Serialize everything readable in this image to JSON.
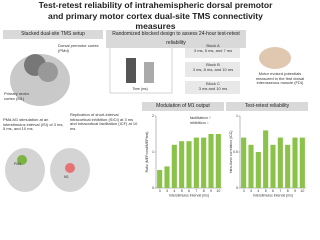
{
  "header": {
    "title": "Test-retest reliability of intrahemispheric dorsal premotor and primary motor cortex dual-site TMS connectivity measures"
  },
  "setup": {
    "heading": "Stacked dual-site TMS setup",
    "pmd_label": "Dorsal premotor cortex (PMd)",
    "m1_label": "Primary motor cortex (M1)",
    "stim_text": "PMd-M1 stimulation at an interstimulus interval (ISI) of 3 ms, 5 ms, and 10 ms",
    "replication_text": "Replication of short-interval intracortical inhibition (SICI) at 3 ms and intracortical facilitation (ICF) at 10 ms",
    "pmd_tag": "PMd",
    "m1_tag": "M1"
  },
  "design": {
    "heading": "Randomized blocked design to assess 24-hour test-retest reliability",
    "time_label": "Time (ms)",
    "blocks": [
      "Block A\n3 ms, 5 ms, and 7 ms",
      "Block B\n3 ms, 8 ms, and 10 ms",
      "Block C\n3 ms and 10 ms"
    ],
    "mep_text": "Motor evoked potentials measured in the first dorsal interosseous muscle (FDI)"
  },
  "modulation": {
    "heading": "Modulation of M1 output",
    "ylabel": "Ratio (MEPcond/MEPtest)",
    "xlabel": "Interstimulus interval (ms)",
    "note": "facilitation ↑ inhibition ↓",
    "categories": [
      "3",
      "3",
      "4",
      "5",
      "6",
      "7",
      "8",
      "9",
      "10"
    ],
    "values": [
      0.5,
      0.6,
      1.2,
      1.3,
      1.3,
      1.4,
      1.4,
      1.5,
      1.5
    ],
    "color": "#8bc34a",
    "ylim": [
      0,
      2
    ],
    "yticks": [
      0,
      1,
      2
    ]
  },
  "reliability": {
    "heading": "Test-retest reliability",
    "ylabel": "Intra-class correlation (ICC)",
    "xlabel": "Interstimulus interval (ms)",
    "categories": [
      "3",
      "3",
      "4",
      "5",
      "6",
      "7",
      "8",
      "9",
      "10"
    ],
    "values": [
      0.7,
      0.6,
      0.5,
      0.8,
      0.6,
      0.7,
      0.6,
      0.7,
      0.7
    ],
    "color": "#8bc34a",
    "ylim": [
      0,
      1
    ],
    "yticks": [
      0,
      0.5,
      1
    ]
  }
}
